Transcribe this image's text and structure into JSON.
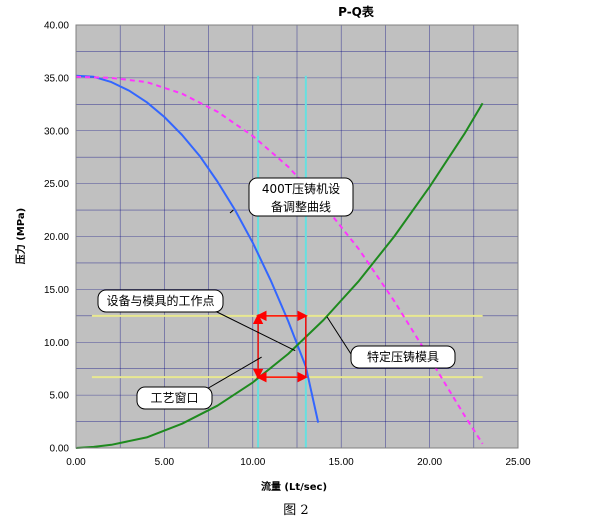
{
  "chart_data": {
    "type": "line",
    "title": "P-Q表",
    "xlabel": "流量 (Lt/sec)",
    "ylabel": "压力 (MPa)",
    "xlim": [
      0,
      25
    ],
    "ylim": [
      0,
      40
    ],
    "xticks": [
      "0.00",
      "5.00",
      "10.00",
      "15.00",
      "20.00",
      "25.00"
    ],
    "yticks": [
      "0.00",
      "5.00",
      "10.00",
      "15.00",
      "20.00",
      "25.00",
      "30.00",
      "35.00",
      "40.00"
    ],
    "grid": true,
    "series": [
      {
        "name": "400T压铸机设备调整曲线",
        "color": "#3366ff",
        "style": "solid",
        "x": [
          0,
          1,
          2,
          3,
          4,
          5,
          6,
          7,
          8,
          9,
          10,
          11,
          12,
          13,
          13.7
        ],
        "y": [
          35.2,
          35.1,
          34.6,
          33.8,
          32.7,
          31.3,
          29.6,
          27.6,
          25.2,
          22.5,
          19.4,
          15.9,
          12.0,
          7.7,
          2.4
        ]
      },
      {
        "name": "",
        "color": "#ff33ff",
        "style": "dashed",
        "x": [
          0,
          2,
          4,
          6,
          8,
          10,
          12,
          14,
          16,
          18,
          20,
          22,
          23
        ],
        "y": [
          35.1,
          35.0,
          34.6,
          33.5,
          31.8,
          29.5,
          26.6,
          23.0,
          18.8,
          13.9,
          8.5,
          3.0,
          0.4
        ]
      },
      {
        "name": "特定压铸模具",
        "color": "#1e8a1e",
        "style": "solid",
        "x": [
          0,
          1,
          2,
          4,
          6,
          8,
          10,
          12,
          14,
          16,
          18,
          20,
          22,
          23
        ],
        "y": [
          0,
          0.1,
          0.3,
          1.0,
          2.3,
          4.0,
          6.2,
          8.9,
          12.1,
          15.8,
          20.0,
          24.7,
          29.8,
          32.6
        ]
      }
    ],
    "reference_lines": {
      "vertical": {
        "color": "#66e0e0",
        "x": [
          10.3,
          13.0
        ]
      },
      "horizontal": {
        "color": "#e8e890",
        "y": [
          12.5,
          6.7
        ]
      }
    },
    "work_window_box": {
      "x": [
        10.3,
        13.0
      ],
      "y": [
        6.7,
        12.5
      ],
      "color": "#ff0000"
    },
    "annotations": [
      {
        "id": "machine",
        "text_lines": [
          "400T压铸机设",
          "备调整曲线"
        ]
      },
      {
        "id": "work_point",
        "text_lines": [
          "设备与模具的工作点"
        ]
      },
      {
        "id": "die",
        "text_lines": [
          "特定压铸模具"
        ]
      },
      {
        "id": "window",
        "text_lines": [
          "工艺窗口"
        ]
      }
    ]
  },
  "caption": "图 2"
}
